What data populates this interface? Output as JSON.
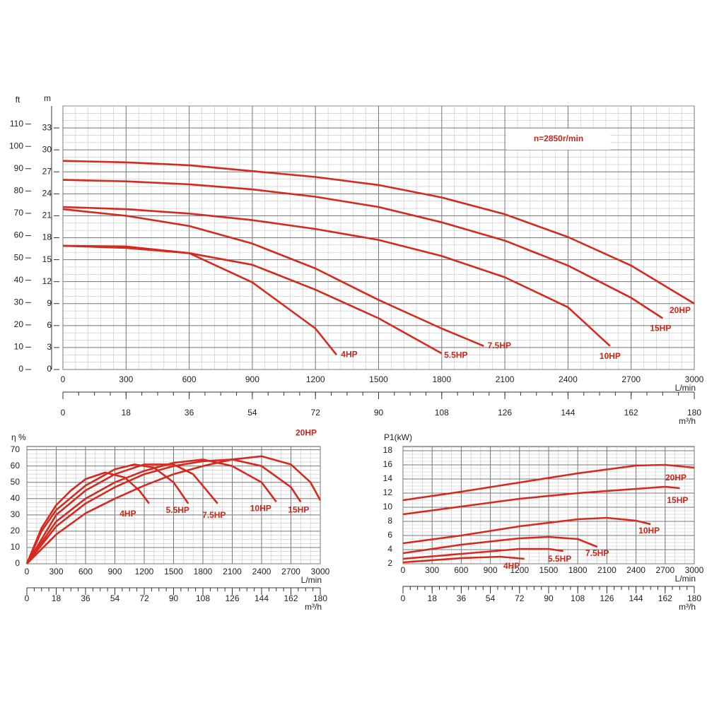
{
  "chart_data": [
    {
      "type": "line",
      "xlabel": "L/min",
      "x2label": "m³/h",
      "ylabel": "m",
      "y2label": "ft",
      "annotation": "n=2850r/min",
      "xlim": [
        0,
        3000
      ],
      "xticks": [
        0,
        300,
        600,
        900,
        1200,
        1500,
        1800,
        2100,
        2400,
        2700,
        3000
      ],
      "x2lim": [
        0,
        180
      ],
      "x2ticks": [
        0,
        18,
        36,
        54,
        72,
        90,
        108,
        126,
        144,
        162,
        180
      ],
      "ylim": [
        0,
        36
      ],
      "yticks": [
        0,
        3,
        6,
        9,
        12,
        15,
        18,
        21,
        24,
        27,
        30,
        33
      ],
      "y2lim": [
        0,
        118.11
      ],
      "y2ticks": [
        0,
        10,
        20,
        30,
        40,
        50,
        60,
        70,
        80,
        90,
        100,
        110
      ],
      "grid": true,
      "series": [
        {
          "name": "4HP",
          "color": "#d42a1f",
          "x": [
            0,
            300,
            600,
            900,
            1200,
            1300
          ],
          "values": [
            16.9,
            16.8,
            15.9,
            11.9,
            5.6,
            2.0
          ]
        },
        {
          "name": "5.5HP",
          "color": "#d42a1f",
          "x": [
            0,
            300,
            600,
            900,
            1200,
            1500,
            1800
          ],
          "values": [
            16.9,
            16.6,
            15.9,
            14.3,
            10.9,
            7.0,
            2.2
          ]
        },
        {
          "name": "7.5HP",
          "color": "#d42a1f",
          "x": [
            0,
            300,
            600,
            900,
            1200,
            1500,
            1800,
            2000
          ],
          "values": [
            21.9,
            21.0,
            19.6,
            17.2,
            13.8,
            9.5,
            5.6,
            3.2
          ]
        },
        {
          "name": "10HP",
          "color": "#d42a1f",
          "x": [
            0,
            300,
            600,
            900,
            1200,
            1500,
            1800,
            2100,
            2400,
            2600
          ],
          "values": [
            22.2,
            21.9,
            21.3,
            20.4,
            19.2,
            17.7,
            15.5,
            12.6,
            8.5,
            3.2
          ]
        },
        {
          "name": "15HP",
          "color": "#d42a1f",
          "x": [
            0,
            300,
            600,
            900,
            1200,
            1500,
            1800,
            2100,
            2400,
            2700,
            2850
          ],
          "values": [
            25.9,
            25.7,
            25.3,
            24.6,
            23.6,
            22.2,
            20.1,
            17.6,
            14.2,
            9.8,
            7.0
          ]
        },
        {
          "name": "20HP",
          "color": "#d42a1f",
          "x": [
            0,
            300,
            600,
            900,
            1200,
            1500,
            1800,
            2100,
            2400,
            2700,
            3000
          ],
          "values": [
            28.5,
            28.3,
            27.9,
            27.1,
            26.3,
            25.2,
            23.5,
            21.2,
            18.1,
            14.2,
            9.0
          ]
        }
      ]
    },
    {
      "type": "line",
      "xlabel": "L/min",
      "x2label": "m³/h",
      "ylabel": "η %",
      "xlim": [
        0,
        3000
      ],
      "xticks": [
        0,
        300,
        600,
        900,
        1200,
        1500,
        1800,
        2100,
        2400,
        2700,
        3000
      ],
      "x2lim": [
        0,
        180
      ],
      "x2ticks": [
        0,
        18,
        36,
        54,
        72,
        90,
        108,
        126,
        144,
        162,
        180
      ],
      "ylim": [
        0,
        72
      ],
      "yticks": [
        0,
        10,
        20,
        30,
        40,
        50,
        60,
        70
      ],
      "grid": true,
      "series": [
        {
          "name": "4HP",
          "color": "#d42a1f",
          "x": [
            0,
            150,
            300,
            450,
            600,
            800,
            1000,
            1150,
            1250
          ],
          "values": [
            0,
            22,
            36,
            45,
            52,
            56,
            53,
            45,
            37
          ]
        },
        {
          "name": "5.5HP",
          "color": "#d42a1f",
          "x": [
            0,
            150,
            300,
            600,
            900,
            1100,
            1300,
            1500,
            1650
          ],
          "values": [
            0,
            20,
            33,
            48,
            58,
            61,
            59,
            50,
            37
          ]
        },
        {
          "name": "7.5HP",
          "color": "#d42a1f",
          "x": [
            0,
            300,
            600,
            900,
            1200,
            1500,
            1700,
            1950
          ],
          "values": [
            0,
            30,
            45,
            55,
            61,
            61,
            55,
            37
          ]
        },
        {
          "name": "10HP",
          "color": "#d42a1f",
          "x": [
            0,
            300,
            600,
            900,
            1200,
            1500,
            1800,
            2100,
            2400,
            2550
          ],
          "values": [
            0,
            26,
            40,
            50,
            57,
            62,
            64,
            60,
            50,
            38
          ]
        },
        {
          "name": "15HP",
          "color": "#d42a1f",
          "x": [
            0,
            300,
            600,
            900,
            1200,
            1500,
            1800,
            2100,
            2400,
            2700,
            2800
          ],
          "values": [
            0,
            23,
            37,
            47,
            55,
            60,
            63,
            64,
            60,
            47,
            38
          ]
        },
        {
          "name": "20HP",
          "color": "#d42a1f",
          "x": [
            0,
            300,
            600,
            900,
            1200,
            1500,
            1800,
            2100,
            2400,
            2700,
            2900,
            3000
          ],
          "values": [
            0,
            18,
            31,
            40,
            48,
            55,
            60,
            64,
            66,
            61,
            50,
            39
          ]
        }
      ]
    },
    {
      "type": "line",
      "xlabel": "L/min",
      "x2label": "m³/h",
      "ylabel": "P1(kW)",
      "xlim": [
        0,
        3000
      ],
      "xticks": [
        0,
        300,
        600,
        900,
        1200,
        1500,
        1800,
        2100,
        2400,
        2700,
        3000
      ],
      "x2lim": [
        0,
        180
      ],
      "x2ticks": [
        0,
        18,
        36,
        54,
        72,
        90,
        108,
        126,
        144,
        162,
        180
      ],
      "ylim": [
        2,
        18.6
      ],
      "yticks": [
        2,
        4,
        6,
        8,
        10,
        12,
        14,
        16,
        18
      ],
      "grid": true,
      "series": [
        {
          "name": "4HP",
          "color": "#d42a1f",
          "x": [
            0,
            600,
            1000,
            1250
          ],
          "values": [
            2.2,
            2.8,
            3.0,
            2.7
          ]
        },
        {
          "name": "5.5HP",
          "color": "#d42a1f",
          "x": [
            0,
            600,
            1200,
            1500,
            1650
          ],
          "values": [
            2.7,
            3.4,
            4.1,
            4.1,
            3.8
          ]
        },
        {
          "name": "7.5HP",
          "color": "#d42a1f",
          "x": [
            0,
            600,
            1200,
            1500,
            1800,
            2000
          ],
          "values": [
            3.5,
            4.7,
            5.6,
            5.8,
            5.5,
            4.4
          ]
        },
        {
          "name": "10HP",
          "color": "#d42a1f",
          "x": [
            0,
            600,
            1200,
            1800,
            2100,
            2400,
            2550
          ],
          "values": [
            4.9,
            6.0,
            7.3,
            8.3,
            8.5,
            8.1,
            7.6
          ]
        },
        {
          "name": "15HP",
          "color": "#d42a1f",
          "x": [
            0,
            600,
            1200,
            1800,
            2400,
            2700,
            2850
          ],
          "values": [
            9.0,
            10.1,
            11.2,
            12.0,
            12.6,
            12.9,
            12.7
          ]
        },
        {
          "name": "20HP",
          "color": "#d42a1f",
          "x": [
            0,
            600,
            1200,
            1800,
            2400,
            2700,
            3000
          ],
          "values": [
            11.0,
            12.2,
            13.5,
            14.8,
            15.9,
            16.0,
            15.6
          ]
        }
      ]
    }
  ]
}
